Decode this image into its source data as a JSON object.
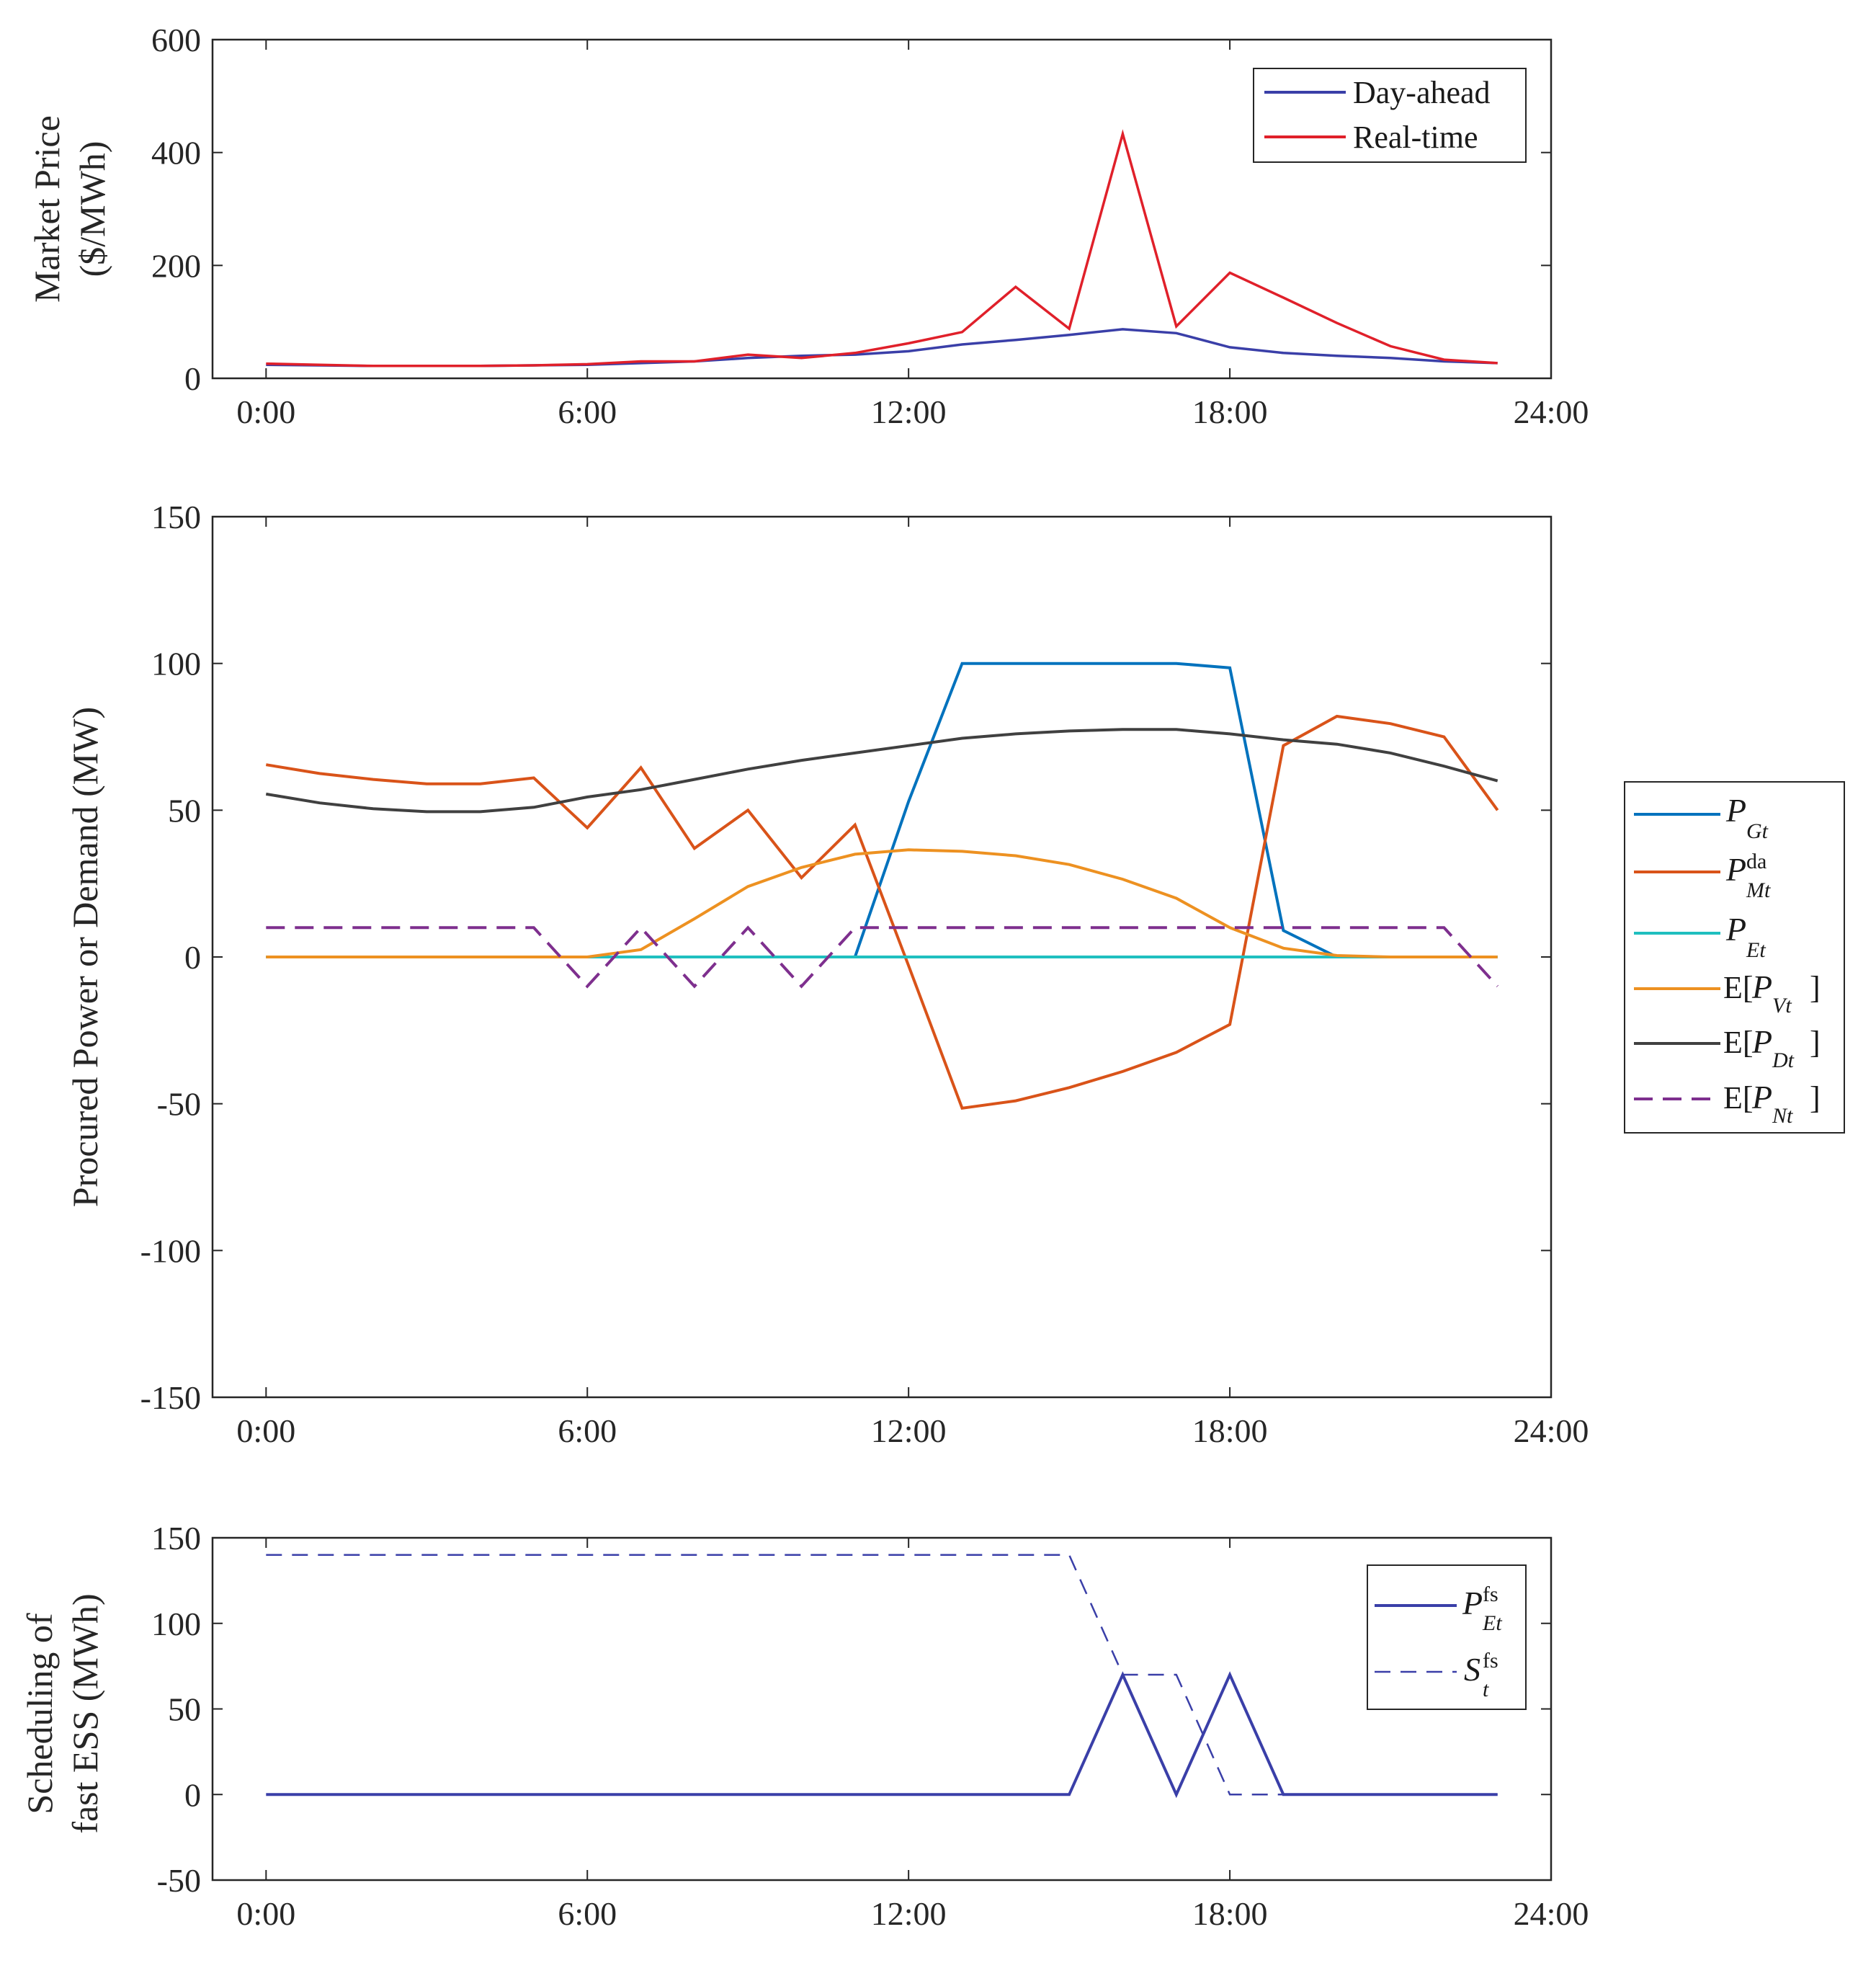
{
  "chart_data": [
    {
      "type": "line",
      "xlabel": "",
      "ylabel": [
        "Market Price",
        "($/MWh)"
      ],
      "xlim": [
        -1,
        24
      ],
      "ylim": [
        0,
        600
      ],
      "yticks": [
        0,
        200,
        400,
        600
      ],
      "xticks": [
        0,
        6,
        12,
        18,
        24
      ],
      "xtick_labels": [
        "0:00",
        "6:00",
        "12:00",
        "18:00",
        "24:00"
      ],
      "legend_position": "top-right",
      "x": [
        0,
        1,
        2,
        3,
        4,
        5,
        6,
        7,
        8,
        9,
        10,
        11,
        12,
        13,
        14,
        15,
        16,
        17,
        18,
        19,
        20,
        21,
        22,
        23
      ],
      "series": [
        {
          "name": "Day-ahead",
          "color": "#3a3fa8",
          "dash": "solid",
          "values": [
            24,
            23,
            22,
            22,
            22,
            23,
            24,
            27,
            30,
            36,
            40,
            42,
            48,
            60,
            68,
            77,
            87,
            80,
            55,
            45,
            40,
            36,
            30,
            27
          ]
        },
        {
          "name": "Real-time",
          "color": "#e0202a",
          "dash": "solid",
          "values": [
            26,
            24,
            22,
            22,
            22,
            23,
            25,
            30,
            30,
            42,
            36,
            45,
            62,
            82,
            162,
            88,
            433,
            92,
            187,
            143,
            98,
            57,
            33,
            27
          ]
        }
      ]
    },
    {
      "type": "line",
      "xlabel": "",
      "ylabel": [
        "Procured Power or Demand (MW)"
      ],
      "xlim": [
        -1,
        24
      ],
      "ylim": [
        -150,
        150
      ],
      "yticks": [
        -150,
        -100,
        -50,
        0,
        50,
        100,
        150
      ],
      "xticks": [
        0,
        6,
        12,
        18,
        24
      ],
      "xtick_labels": [
        "0:00",
        "6:00",
        "12:00",
        "18:00",
        "24:00"
      ],
      "legend_position": "outside-right",
      "x": [
        0,
        1,
        2,
        3,
        4,
        5,
        6,
        7,
        8,
        9,
        10,
        11,
        12,
        13,
        14,
        15,
        16,
        17,
        18,
        19,
        20,
        21,
        22,
        23
      ],
      "series": [
        {
          "name": "P_Gt",
          "color": "#0072bd",
          "dash": "solid",
          "values": [
            0,
            0,
            0,
            0,
            0,
            0,
            0,
            0,
            0,
            0,
            0,
            0,
            53,
            100,
            100,
            100,
            100,
            100,
            98.5,
            9,
            0,
            0,
            0,
            0
          ]
        },
        {
          "name": "P^da_Mt",
          "color": "#d95319",
          "dash": "solid",
          "values": [
            65.5,
            62.5,
            60.5,
            59,
            59,
            61,
            44,
            64.5,
            37,
            50,
            27,
            45,
            -3,
            -51.5,
            -49,
            -44.5,
            -39,
            -32.5,
            -23,
            72,
            82,
            79.5,
            75,
            50
          ]
        },
        {
          "name": "P_Et",
          "color": "#1fbfbf",
          "dash": "solid",
          "values": [
            0,
            0,
            0,
            0,
            0,
            0,
            0,
            0,
            0,
            0,
            0,
            0,
            0,
            0,
            0,
            0,
            0,
            0,
            0,
            0,
            0,
            0,
            0,
            0
          ]
        },
        {
          "name": "E[P_Vt]",
          "color": "#ed9121",
          "dash": "solid",
          "values": [
            0,
            0,
            0,
            0,
            0,
            0,
            0,
            2.5,
            13,
            24,
            30.5,
            35,
            36.5,
            36,
            34.5,
            31.5,
            26.5,
            20,
            10,
            3,
            0.5,
            0,
            0,
            0
          ]
        },
        {
          "name": "E[P_Dt]",
          "color": "#404040",
          "dash": "solid",
          "values": [
            55.5,
            52.5,
            50.5,
            49.5,
            49.5,
            51,
            54.5,
            57,
            60.5,
            64,
            67,
            69.5,
            72,
            74.5,
            76,
            77,
            77.5,
            77.5,
            76,
            74,
            72.5,
            69.5,
            65,
            60
          ]
        },
        {
          "name": "E[P_Nt]",
          "color": "#7e2f8e",
          "dash": "dashed",
          "values": [
            10,
            10,
            10,
            10,
            10,
            10,
            -10,
            10,
            -10,
            10,
            -10,
            10,
            10,
            10,
            10,
            10,
            10,
            10,
            10,
            10,
            10,
            10,
            10,
            -10
          ]
        }
      ]
    },
    {
      "type": "line",
      "xlabel": "",
      "ylabel": [
        "Scheduling of",
        "fast ESS (MWh)"
      ],
      "xlim": [
        -1,
        24
      ],
      "ylim": [
        -50,
        150
      ],
      "yticks": [
        -50,
        0,
        50,
        100,
        150
      ],
      "xticks": [
        0,
        6,
        12,
        18,
        24
      ],
      "xtick_labels": [
        "0:00",
        "6:00",
        "12:00",
        "18:00",
        "24:00"
      ],
      "legend_position": "top-right",
      "x": [
        0,
        1,
        2,
        3,
        4,
        5,
        6,
        7,
        8,
        9,
        10,
        11,
        12,
        13,
        14,
        15,
        16,
        17,
        18,
        19,
        20,
        21,
        22,
        23
      ],
      "series": [
        {
          "name": "P^fs_Et",
          "color": "#3a3fa8",
          "dash": "solid",
          "values": [
            0,
            0,
            0,
            0,
            0,
            0,
            0,
            0,
            0,
            0,
            0,
            0,
            0,
            0,
            0,
            0,
            70,
            0,
            70,
            0,
            0,
            0,
            0,
            0
          ]
        },
        {
          "name": "S^fs_t",
          "color": "#3a3fa8",
          "dash": "dashed",
          "values": [
            140,
            140,
            140,
            140,
            140,
            140,
            140,
            140,
            140,
            140,
            140,
            140,
            140,
            140,
            140,
            140,
            70,
            70,
            0,
            0,
            0,
            0,
            0,
            0
          ]
        }
      ]
    }
  ]
}
